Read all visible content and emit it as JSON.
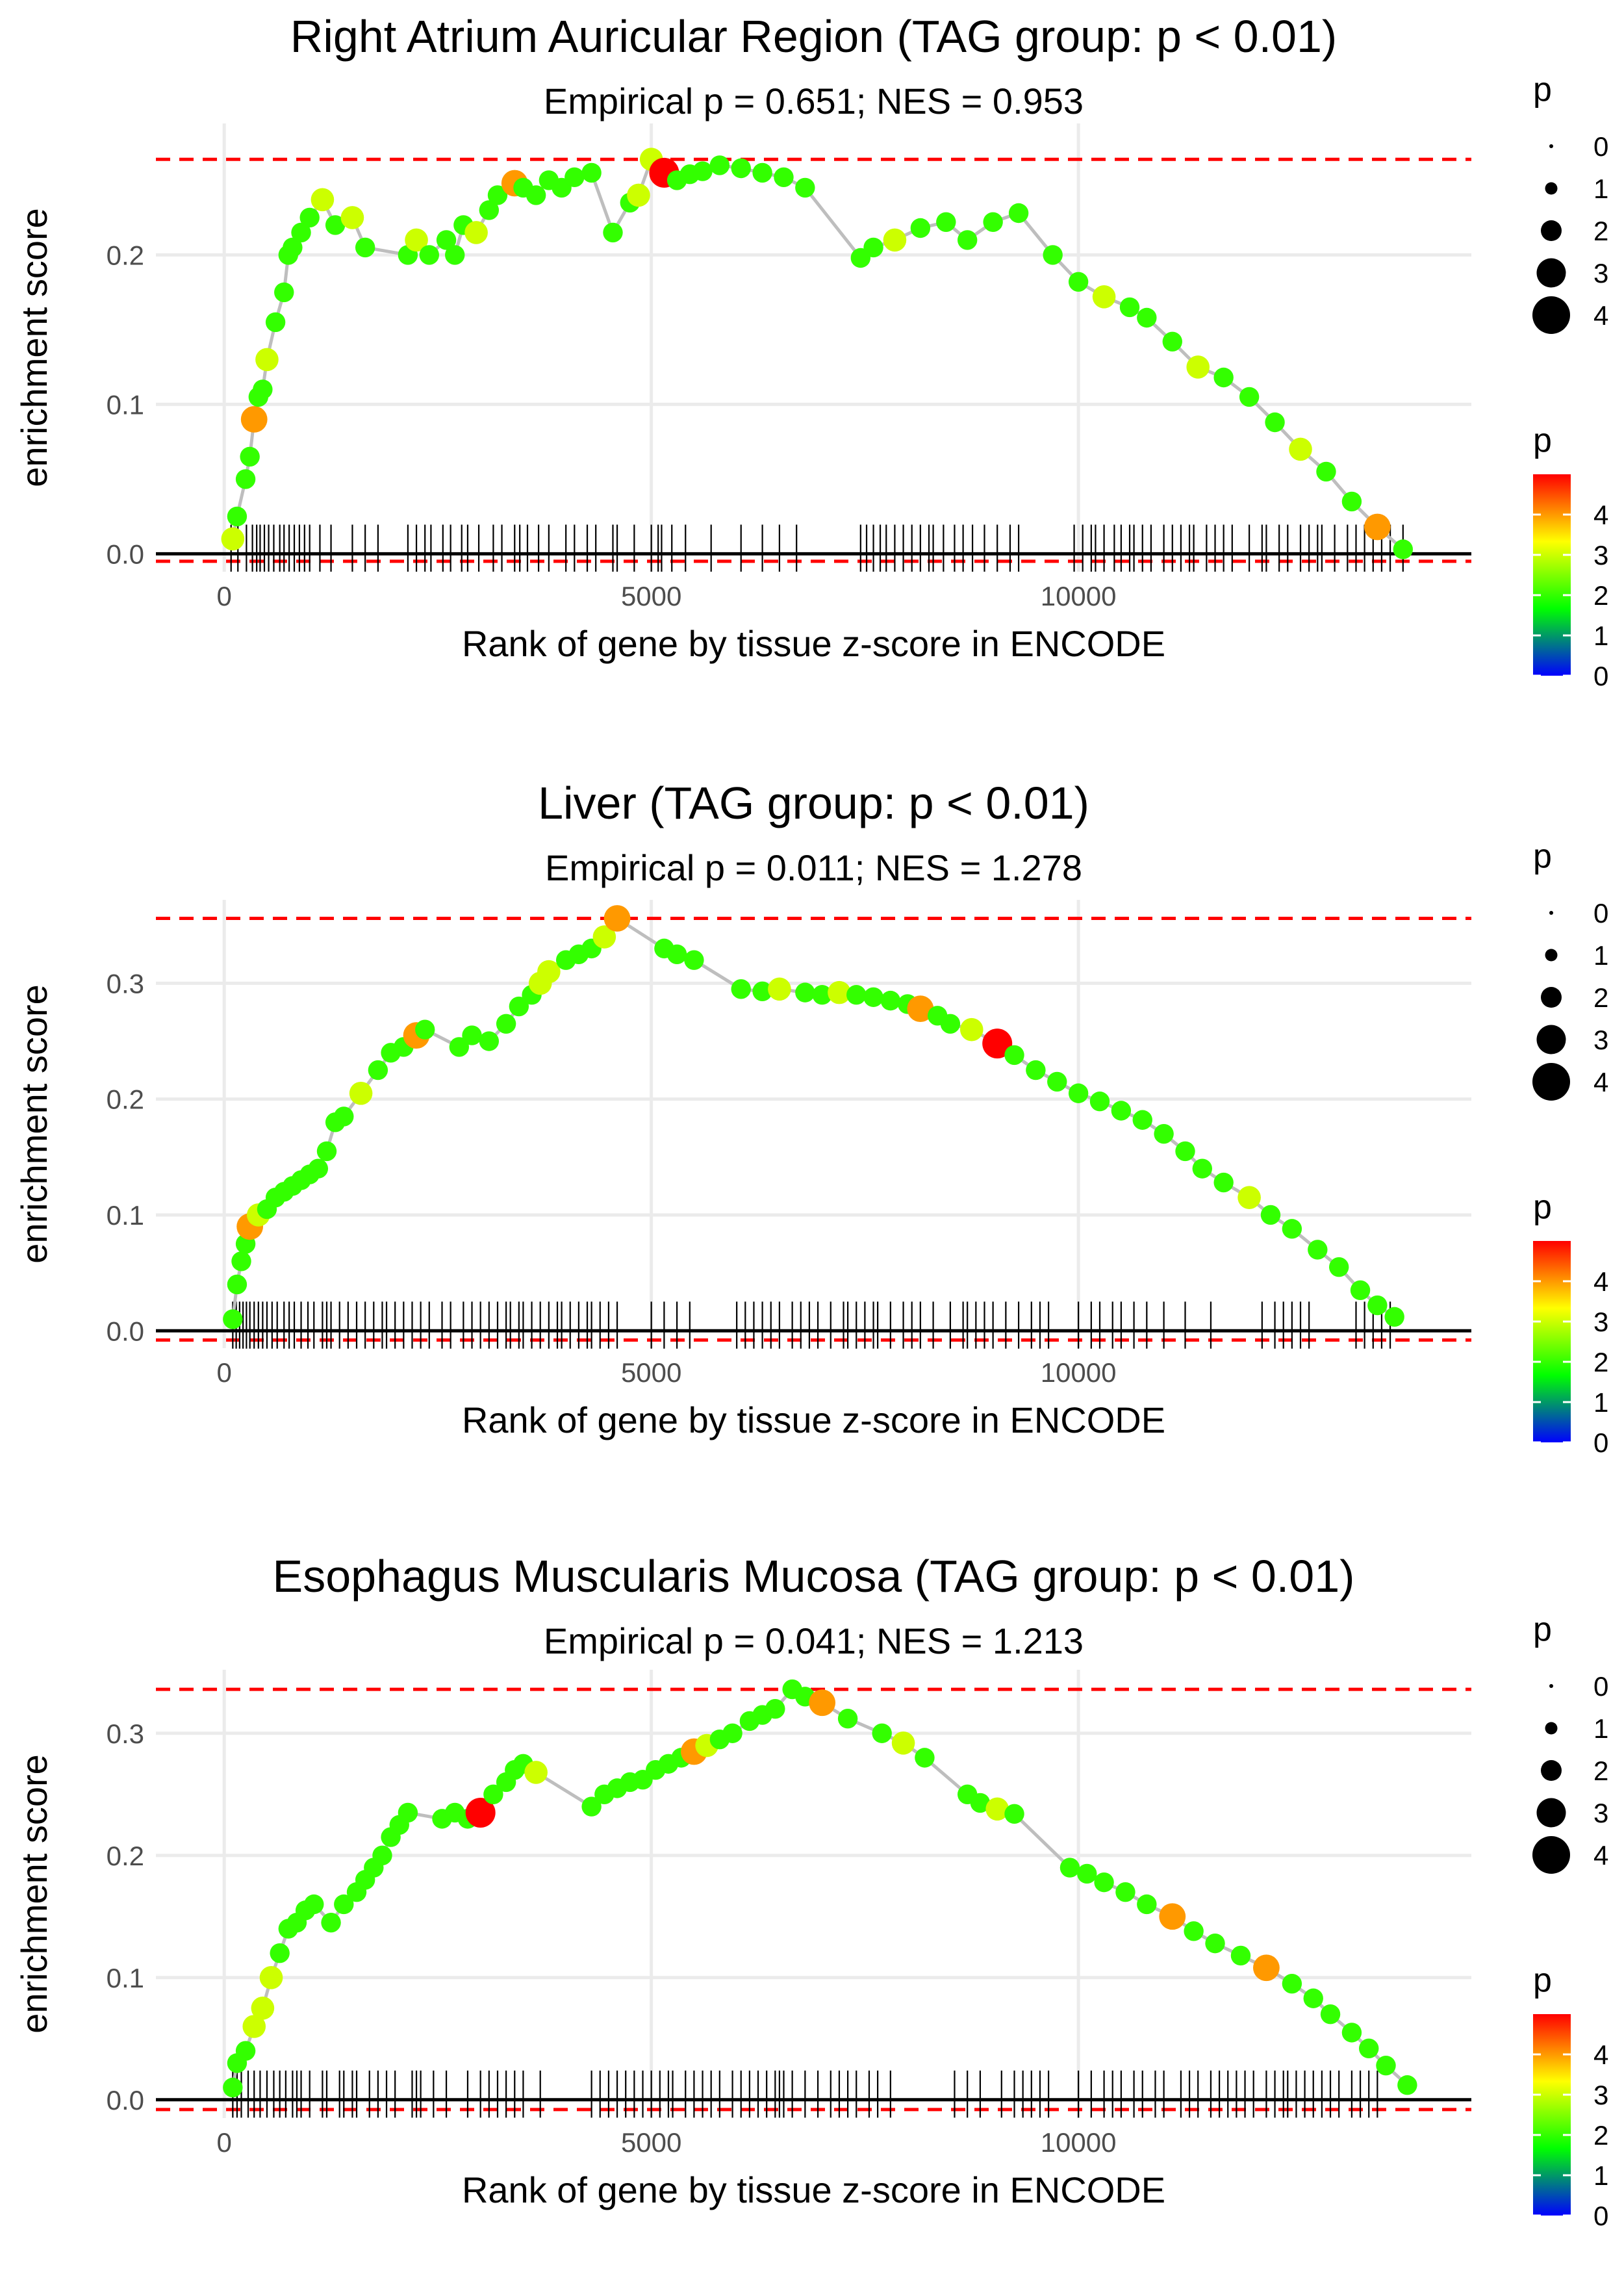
{
  "legend": {
    "size_title": "p",
    "size_levels": [
      "0",
      "1",
      "2",
      "3",
      "4"
    ],
    "color_title": "p",
    "color_ticks": [
      "4",
      "3",
      "2",
      "1",
      "0"
    ],
    "color_stops": [
      "#0000ff",
      "#00ff00",
      "#ffff00",
      "#ff0000"
    ]
  },
  "colors": {
    "threshold": "#ff0000",
    "curve": "#bebebe",
    "grid": "#ebebeb",
    "baseline": "#000000"
  },
  "chart_data": [
    {
      "type": "line",
      "title": "Right Atrium Auricular Region (TAG group: p < 0.01)",
      "subtitle": "Empirical p = 0.651; NES = 0.953",
      "xlabel": "Rank of gene by tissue z-score in ENCODE",
      "ylabel": "enrichment score",
      "xlim": [
        -800,
        14600
      ],
      "ylim": [
        -0.012,
        0.288
      ],
      "x_ticks": [
        0,
        5000,
        10000
      ],
      "x_tick_labels": [
        "0",
        "5000",
        "10000"
      ],
      "y_ticks": [
        0,
        0.1,
        0.2
      ],
      "y_tick_labels": [
        "0.0",
        "0.1",
        "0.2"
      ],
      "max_es": 0.264,
      "min_es": -0.005,
      "curve_x": [
        100,
        150,
        250,
        300,
        350,
        400,
        450,
        500,
        600,
        700,
        750,
        800,
        900,
        1000,
        1150,
        1300,
        1500,
        1650,
        2150,
        2250,
        2400,
        2600,
        2700,
        2800,
        2950,
        3100,
        3200,
        3400,
        3500,
        3650,
        3800,
        3950,
        4100,
        4300,
        4550,
        4750,
        4850,
        5000,
        5150,
        5300,
        5450,
        5600,
        5800,
        6050,
        6300,
        6550,
        6800,
        7450,
        7600,
        7850,
        8150,
        8450,
        8700,
        9000,
        9300,
        9700,
        10000,
        10300,
        10600,
        10800,
        11100,
        11400,
        11700,
        12000,
        12300,
        12600,
        12900,
        13200,
        13500,
        13800
      ],
      "curve_y": [
        0.01,
        0.025,
        0.05,
        0.065,
        0.09,
        0.105,
        0.11,
        0.13,
        0.155,
        0.175,
        0.2,
        0.205,
        0.215,
        0.225,
        0.237,
        0.22,
        0.225,
        0.205,
        0.2,
        0.21,
        0.2,
        0.21,
        0.2,
        0.22,
        0.215,
        0.23,
        0.24,
        0.248,
        0.245,
        0.24,
        0.25,
        0.245,
        0.252,
        0.255,
        0.215,
        0.235,
        0.24,
        0.264,
        0.255,
        0.25,
        0.254,
        0.256,
        0.26,
        0.258,
        0.255,
        0.252,
        0.245,
        0.198,
        0.205,
        0.21,
        0.218,
        0.222,
        0.21,
        0.222,
        0.228,
        0.2,
        0.182,
        0.172,
        0.165,
        0.158,
        0.142,
        0.125,
        0.118,
        0.105,
        0.088,
        0.07,
        0.055,
        0.035,
        0.018,
        0.003
      ],
      "point_p": [
        3,
        2,
        2,
        2,
        4,
        2,
        2,
        3,
        2,
        2,
        2,
        2,
        2,
        2,
        3,
        2,
        3,
        2,
        2,
        3,
        2,
        2,
        2,
        2,
        3,
        2,
        2,
        4,
        2,
        2,
        2,
        2,
        2,
        2,
        2,
        2,
        3,
        3,
        5,
        2,
        2,
        2,
        2,
        2,
        2,
        2,
        2,
        2,
        2,
        3,
        2,
        2,
        2,
        2,
        2,
        2,
        2,
        3,
        2,
        2,
        2,
        3,
        2,
        2,
        2,
        3,
        2,
        2,
        4,
        2
      ],
      "hits": [
        80,
        160,
        260,
        330,
        380,
        420,
        470,
        520,
        580,
        650,
        700,
        760,
        820,
        880,
        940,
        1000,
        1120,
        1250,
        1500,
        1650,
        1800,
        2150,
        2250,
        2350,
        2420,
        2560,
        2650,
        2780,
        2850,
        2980,
        3150,
        3250,
        3400,
        3460,
        3550,
        3680,
        3800,
        4000,
        4100,
        4250,
        4350,
        4550,
        4600,
        4800,
        5000,
        5080,
        5120,
        5240,
        5400,
        5700,
        6050,
        6300,
        6500,
        6700,
        7450,
        7520,
        7600,
        7680,
        7750,
        7850,
        7950,
        8050,
        8150,
        8250,
        8300,
        8420,
        8550,
        8650,
        8760,
        8900,
        9050,
        9200,
        9300,
        9950,
        10050,
        10150,
        10200,
        10300,
        10420,
        10500,
        10600,
        10650,
        10750,
        10850,
        11000,
        11100,
        11200,
        11300,
        11350,
        11500,
        11600,
        11700,
        11800,
        12000,
        12150,
        12200,
        12350,
        12450,
        12600,
        12700,
        12800,
        12850,
        13000,
        13150,
        13250,
        13350,
        13450,
        13550,
        13650,
        13800
      ]
    },
    {
      "type": "line",
      "title": "Liver (TAG group: p < 0.01)",
      "subtitle": "Empirical p = 0.011; NES = 1.278",
      "xlabel": "Rank of gene by tissue z-score in ENCODE",
      "ylabel": "enrichment score",
      "xlim": [
        -800,
        14600
      ],
      "ylim": [
        -0.015,
        0.372
      ],
      "x_ticks": [
        0,
        5000,
        10000
      ],
      "x_tick_labels": [
        "0",
        "5000",
        "10000"
      ],
      "y_ticks": [
        0,
        0.1,
        0.2,
        0.3
      ],
      "y_tick_labels": [
        "0.0",
        "0.1",
        "0.2",
        "0.3"
      ],
      "max_es": 0.356,
      "min_es": -0.008,
      "curve_x": [
        100,
        150,
        200,
        250,
        300,
        400,
        500,
        600,
        700,
        800,
        900,
        1000,
        1100,
        1200,
        1300,
        1400,
        1600,
        1800,
        1950,
        2100,
        2250,
        2350,
        2750,
        2900,
        3100,
        3300,
        3450,
        3600,
        3700,
        3800,
        4000,
        4150,
        4300,
        4450,
        4600,
        5150,
        5300,
        5500,
        6050,
        6300,
        6500,
        6800,
        7000,
        7200,
        7400,
        7600,
        7800,
        8000,
        8150,
        8350,
        8500,
        8750,
        9050,
        9250,
        9500,
        9750,
        10000,
        10250,
        10500,
        10750,
        11000,
        11250,
        11450,
        11700,
        12000,
        12250,
        12500,
        12800,
        13050,
        13300,
        13500,
        13700
      ],
      "curve_y": [
        0.01,
        0.04,
        0.06,
        0.075,
        0.09,
        0.1,
        0.105,
        0.115,
        0.12,
        0.125,
        0.13,
        0.135,
        0.14,
        0.155,
        0.18,
        0.185,
        0.205,
        0.225,
        0.24,
        0.245,
        0.255,
        0.26,
        0.245,
        0.255,
        0.25,
        0.265,
        0.28,
        0.29,
        0.3,
        0.31,
        0.32,
        0.325,
        0.33,
        0.34,
        0.356,
        0.33,
        0.325,
        0.32,
        0.295,
        0.293,
        0.295,
        0.292,
        0.29,
        0.292,
        0.29,
        0.288,
        0.285,
        0.282,
        0.278,
        0.272,
        0.265,
        0.26,
        0.248,
        0.238,
        0.225,
        0.215,
        0.205,
        0.198,
        0.19,
        0.182,
        0.17,
        0.155,
        0.14,
        0.128,
        0.115,
        0.1,
        0.088,
        0.07,
        0.055,
        0.035,
        0.022,
        0.012
      ],
      "point_p": [
        2,
        2,
        2,
        2,
        4,
        3,
        2,
        2,
        2,
        2,
        2,
        2,
        2,
        2,
        2,
        2,
        3,
        2,
        2,
        2,
        4,
        2,
        2,
        2,
        2,
        2,
        2,
        2,
        3,
        3,
        2,
        2,
        2,
        3,
        4,
        2,
        2,
        2,
        2,
        2,
        3,
        2,
        2,
        3,
        2,
        2,
        2,
        2,
        4,
        2,
        2,
        3,
        5,
        2,
        2,
        2,
        2,
        2,
        2,
        2,
        2,
        2,
        2,
        2,
        3,
        2,
        2,
        2,
        2,
        2,
        2,
        2
      ],
      "hits": [
        100,
        140,
        180,
        220,
        260,
        300,
        350,
        400,
        450,
        500,
        560,
        620,
        700,
        760,
        820,
        900,
        980,
        1050,
        1150,
        1200,
        1250,
        1350,
        1450,
        1550,
        1650,
        1750,
        1850,
        1900,
        2000,
        2100,
        2200,
        2300,
        2400,
        2550,
        2650,
        2800,
        2900,
        3000,
        3100,
        3200,
        3300,
        3350,
        3450,
        3500,
        3600,
        3700,
        3800,
        3900,
        3950,
        4050,
        4150,
        4250,
        4300,
        4400,
        4500,
        4600,
        5000,
        5150,
        5300,
        5450,
        6000,
        6100,
        6200,
        6300,
        6400,
        6500,
        6650,
        6750,
        6850,
        6950,
        7100,
        7250,
        7300,
        7400,
        7500,
        7600,
        7650,
        7800,
        7950,
        8050,
        8150,
        8300,
        8500,
        8650,
        8700,
        8800,
        8900,
        9000,
        9150,
        9300,
        9450,
        9550,
        9650,
        10000,
        10150,
        10250,
        10400,
        10500,
        10650,
        10800,
        11000,
        11250,
        11550,
        12150,
        12300,
        12400,
        12500,
        12600,
        12700,
        13250,
        13350,
        13450,
        13550,
        13650
      ]
    },
    {
      "type": "line",
      "title": "Esophagus Muscularis Mucosa (TAG group: p < 0.01)",
      "subtitle": "Empirical p = 0.041; NES = 1.213",
      "xlabel": "Rank of gene by tissue z-score in ENCODE",
      "ylabel": "enrichment score",
      "xlim": [
        -800,
        14600
      ],
      "ylim": [
        -0.015,
        0.352
      ],
      "x_ticks": [
        0,
        5000,
        10000
      ],
      "x_tick_labels": [
        "0",
        "5000",
        "10000"
      ],
      "y_ticks": [
        0,
        0.1,
        0.2,
        0.3
      ],
      "y_tick_labels": [
        "0.0",
        "0.1",
        "0.2",
        "0.3"
      ],
      "max_es": 0.336,
      "min_es": -0.008,
      "curve_x": [
        100,
        150,
        250,
        350,
        450,
        550,
        650,
        750,
        850,
        950,
        1050,
        1250,
        1400,
        1550,
        1650,
        1750,
        1850,
        1950,
        2050,
        2150,
        2550,
        2700,
        2850,
        3000,
        3150,
        3300,
        3400,
        3500,
        3650,
        4300,
        4450,
        4600,
        4750,
        4900,
        5050,
        5200,
        5350,
        5500,
        5650,
        5800,
        5950,
        6150,
        6300,
        6450,
        6650,
        6800,
        7000,
        7300,
        7700,
        7950,
        8200,
        8700,
        8850,
        9050,
        9250,
        9900,
        10100,
        10300,
        10550,
        10800,
        11100,
        11350,
        11600,
        11900,
        12200,
        12500,
        12750,
        12950,
        13200,
        13400,
        13600,
        13850
      ],
      "curve_y": [
        0.01,
        0.03,
        0.04,
        0.06,
        0.075,
        0.1,
        0.12,
        0.14,
        0.145,
        0.155,
        0.16,
        0.145,
        0.16,
        0.17,
        0.18,
        0.19,
        0.2,
        0.215,
        0.225,
        0.235,
        0.23,
        0.235,
        0.23,
        0.235,
        0.25,
        0.26,
        0.27,
        0.275,
        0.268,
        0.24,
        0.25,
        0.255,
        0.26,
        0.262,
        0.27,
        0.275,
        0.28,
        0.285,
        0.29,
        0.295,
        0.3,
        0.31,
        0.315,
        0.32,
        0.336,
        0.33,
        0.325,
        0.312,
        0.3,
        0.292,
        0.28,
        0.25,
        0.243,
        0.238,
        0.234,
        0.19,
        0.185,
        0.178,
        0.17,
        0.16,
        0.15,
        0.138,
        0.128,
        0.118,
        0.108,
        0.095,
        0.083,
        0.07,
        0.055,
        0.042,
        0.028,
        0.012
      ],
      "point_p": [
        2,
        2,
        2,
        3,
        3,
        3,
        2,
        2,
        2,
        2,
        2,
        2,
        2,
        2,
        2,
        2,
        2,
        2,
        2,
        2,
        2,
        2,
        2,
        5,
        2,
        2,
        2,
        2,
        3,
        2,
        2,
        2,
        2,
        2,
        2,
        2,
        2,
        4,
        3,
        2,
        2,
        2,
        2,
        2,
        2,
        2,
        4,
        2,
        2,
        3,
        2,
        2,
        2,
        3,
        2,
        2,
        2,
        2,
        2,
        2,
        4,
        2,
        2,
        2,
        4,
        2,
        2,
        2,
        2,
        2,
        2,
        2
      ],
      "hits": [
        100,
        150,
        200,
        280,
        350,
        420,
        500,
        580,
        650,
        720,
        800,
        850,
        900,
        1000,
        1150,
        1200,
        1350,
        1400,
        1500,
        1550,
        1700,
        1800,
        1900,
        2000,
        2200,
        2250,
        2300,
        2450,
        2600,
        2850,
        3000,
        3100,
        3200,
        3300,
        3400,
        3500,
        3700,
        4300,
        4400,
        4500,
        4600,
        4700,
        4800,
        4900,
        5000,
        5100,
        5200,
        5250,
        5400,
        5500,
        5600,
        5700,
        5800,
        5950,
        6050,
        6150,
        6250,
        6350,
        6450,
        6500,
        6550,
        6650,
        6800,
        6950,
        7100,
        7200,
        7300,
        7400,
        7550,
        7650,
        7800,
        8550,
        8700,
        8850,
        9100,
        9250,
        9350,
        9450,
        9550,
        9650,
        10000,
        10150,
        10300,
        10400,
        10500,
        10650,
        10750,
        10900,
        11000,
        11200,
        11300,
        11400,
        11550,
        11650,
        11750,
        11850,
        11950,
        12050,
        12200,
        12300,
        12400,
        12450,
        12550,
        12650,
        12750,
        12850,
        12950,
        13050,
        13200,
        13300,
        13400,
        13500
      ]
    }
  ]
}
